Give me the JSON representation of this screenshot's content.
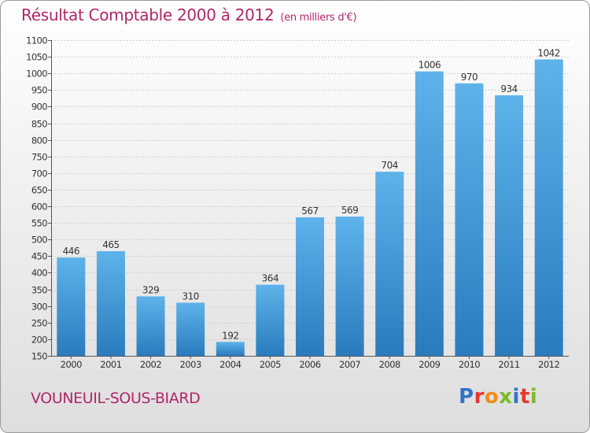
{
  "header": {
    "title": "Résultat Comptable 2000 à 2012",
    "unit": "(en milliers d'€)"
  },
  "footer": {
    "city": "VOUNEUIL-SOUS-BIARD",
    "logo_text": "Proxiti"
  },
  "colors": {
    "title": "#b0266a",
    "bar_top": "#5eb3ea",
    "bar_bottom": "#2a7bbd"
  },
  "chart_data": {
    "type": "bar",
    "title": "Résultat Comptable 2000 à 2012",
    "subtitle": "(en milliers d'€)",
    "categories": [
      "2000",
      "2001",
      "2002",
      "2003",
      "2004",
      "2005",
      "2006",
      "2007",
      "2008",
      "2009",
      "2010",
      "2011",
      "2012"
    ],
    "values": [
      446,
      465,
      329,
      310,
      192,
      364,
      567,
      569,
      704,
      1006,
      970,
      934,
      1042
    ],
    "ylim": [
      150,
      1100
    ],
    "yticks": [
      150,
      200,
      250,
      300,
      350,
      400,
      450,
      500,
      550,
      600,
      650,
      700,
      750,
      800,
      850,
      900,
      950,
      1000,
      1050,
      1100
    ],
    "grid": true,
    "data_labels": true,
    "xlabel": "",
    "ylabel": ""
  }
}
